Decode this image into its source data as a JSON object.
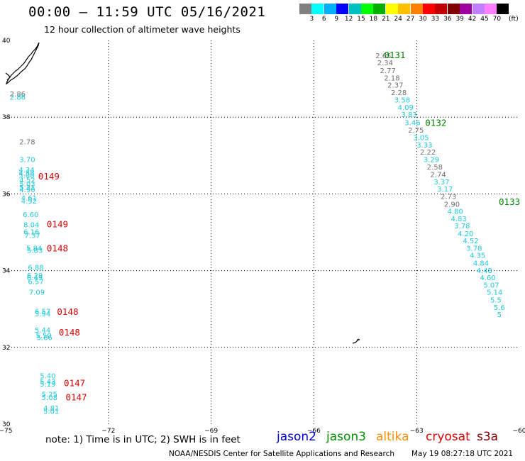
{
  "header": {
    "title": "00:00 – 11:59 UTC 05/16/2021",
    "subtitle": "12 hour collection of altimeter wave heights"
  },
  "legend": {
    "colors": [
      "#808080",
      "#00ffff",
      "#00b0ff",
      "#0000ff",
      "#00c0c0",
      "#00ff00",
      "#00b000",
      "#ffff00",
      "#ffc000",
      "#ff8000",
      "#ff0000",
      "#c00000",
      "#800000",
      "#a000a0",
      "#c080ff",
      "#ff80ff",
      "#000000"
    ],
    "ticks": [
      "3",
      "6",
      "9",
      "12",
      "15",
      "18",
      "21",
      "24",
      "27",
      "30",
      "33",
      "36",
      "39",
      "42",
      "45",
      "70"
    ],
    "unit": "(ft)"
  },
  "axes": {
    "lat_labels": [
      "40",
      "38",
      "36",
      "34",
      "32",
      "30"
    ],
    "lon_labels": [
      "−75",
      "−72",
      "−69",
      "−66",
      "−63",
      "−60"
    ]
  },
  "palette": {
    "cyan": "#1fc8d8",
    "gray": "#707070",
    "red": "#e00000",
    "green": "#008000"
  },
  "track_labels": [
    {
      "text": "0131",
      "color": "green",
      "lon": -63.95,
      "lat": 39.54
    },
    {
      "text": "0132",
      "color": "green",
      "lon": -62.75,
      "lat": 37.77
    },
    {
      "text": "0133",
      "color": "green",
      "lon": -60.6,
      "lat": 35.71
    },
    {
      "text": "0149",
      "color": "red",
      "lon": -74.05,
      "lat": 36.38
    },
    {
      "text": "0149",
      "color": "red",
      "lon": -73.8,
      "lat": 35.13
    },
    {
      "text": "0148",
      "color": "red",
      "lon": -73.8,
      "lat": 34.5
    },
    {
      "text": "0148",
      "color": "red",
      "lon": -73.5,
      "lat": 32.85
    },
    {
      "text": "0148",
      "color": "red",
      "lon": -73.45,
      "lat": 32.31
    },
    {
      "text": "0147",
      "color": "red",
      "lon": -73.3,
      "lat": 30.99
    },
    {
      "text": "0147",
      "color": "red",
      "lon": -73.25,
      "lat": 30.62
    }
  ],
  "observations": [
    {
      "t": "2.65",
      "c": "gray",
      "lon": -64.2,
      "lat": 39.54
    },
    {
      "t": "2.34",
      "c": "gray",
      "lon": -64.15,
      "lat": 39.35
    },
    {
      "t": "2.77",
      "c": "gray",
      "lon": -64.07,
      "lat": 39.15
    },
    {
      "t": "2.18",
      "c": "gray",
      "lon": -63.95,
      "lat": 38.96
    },
    {
      "t": "2.37",
      "c": "gray",
      "lon": -63.85,
      "lat": 38.77
    },
    {
      "t": "2.28",
      "c": "gray",
      "lon": -63.75,
      "lat": 38.58
    },
    {
      "t": "3.58",
      "c": "cyan",
      "lon": -63.65,
      "lat": 38.38
    },
    {
      "t": "4.09",
      "c": "cyan",
      "lon": -63.55,
      "lat": 38.19
    },
    {
      "t": "3.83",
      "c": "cyan",
      "lon": -63.45,
      "lat": 38.0
    },
    {
      "t": "3.46",
      "c": "cyan",
      "lon": -63.35,
      "lat": 37.79
    },
    {
      "t": "2.75",
      "c": "gray",
      "lon": -63.25,
      "lat": 37.6
    },
    {
      "t": "3.05",
      "c": "cyan",
      "lon": -63.1,
      "lat": 37.4
    },
    {
      "t": "3.33",
      "c": "cyan",
      "lon": -63.0,
      "lat": 37.21
    },
    {
      "t": "2.22",
      "c": "gray",
      "lon": -62.9,
      "lat": 37.02
    },
    {
      "t": "3.29",
      "c": "cyan",
      "lon": -62.8,
      "lat": 36.83
    },
    {
      "t": "2.58",
      "c": "gray",
      "lon": -62.7,
      "lat": 36.64
    },
    {
      "t": "2.74",
      "c": "gray",
      "lon": -62.6,
      "lat": 36.44
    },
    {
      "t": "3.37",
      "c": "cyan",
      "lon": -62.5,
      "lat": 36.25
    },
    {
      "t": "3.17",
      "c": "cyan",
      "lon": -62.4,
      "lat": 36.06
    },
    {
      "t": "2.73",
      "c": "gray",
      "lon": -62.3,
      "lat": 35.87
    },
    {
      "t": "2.90",
      "c": "gray",
      "lon": -62.2,
      "lat": 35.67
    },
    {
      "t": "4.80",
      "c": "cyan",
      "lon": -62.1,
      "lat": 35.48
    },
    {
      "t": "4.83",
      "c": "cyan",
      "lon": -62.0,
      "lat": 35.29
    },
    {
      "t": "3.78",
      "c": "cyan",
      "lon": -61.9,
      "lat": 35.1
    },
    {
      "t": "4.20",
      "c": "cyan",
      "lon": -61.8,
      "lat": 34.9
    },
    {
      "t": "4.52",
      "c": "cyan",
      "lon": -61.65,
      "lat": 34.71
    },
    {
      "t": "3.78",
      "c": "cyan",
      "lon": -61.55,
      "lat": 34.52
    },
    {
      "t": "4.35",
      "c": "cyan",
      "lon": -61.45,
      "lat": 34.33
    },
    {
      "t": "4.84",
      "c": "cyan",
      "lon": -61.35,
      "lat": 34.13
    },
    {
      "t": "4.48",
      "c": "cyan",
      "lon": -61.25,
      "lat": 33.94
    },
    {
      "t": "4.60",
      "c": "cyan",
      "lon": -61.15,
      "lat": 33.75
    },
    {
      "t": "5.07",
      "c": "cyan",
      "lon": -61.05,
      "lat": 33.56
    },
    {
      "t": "5.14",
      "c": "cyan",
      "lon": -60.95,
      "lat": 33.37
    },
    {
      "t": "5.5",
      "c": "cyan",
      "lon": -60.85,
      "lat": 33.17
    },
    {
      "t": "5.6",
      "c": "cyan",
      "lon": -60.75,
      "lat": 32.98
    },
    {
      "t": "5",
      "c": "cyan",
      "lon": -60.65,
      "lat": 32.79
    },
    {
      "t": "2.86",
      "c": "gray",
      "lon": -74.88,
      "lat": 38.54
    },
    {
      "t": "2.86",
      "c": "cyan",
      "lon": -74.88,
      "lat": 38.46
    },
    {
      "t": "2.78",
      "c": "gray",
      "lon": -74.6,
      "lat": 37.29
    },
    {
      "t": "3.70",
      "c": "cyan",
      "lon": -74.6,
      "lat": 36.83
    },
    {
      "t": "4.34",
      "c": "cyan",
      "lon": -74.62,
      "lat": 36.56
    },
    {
      "t": "4.58",
      "c": "cyan",
      "lon": -74.62,
      "lat": 36.48
    },
    {
      "t": "5.08",
      "c": "cyan",
      "lon": -74.62,
      "lat": 36.42
    },
    {
      "t": "4.52",
      "c": "cyan",
      "lon": -74.6,
      "lat": 36.29
    },
    {
      "t": "5.03",
      "c": "cyan",
      "lon": -74.6,
      "lat": 36.19
    },
    {
      "t": "5.21",
      "c": "cyan",
      "lon": -74.6,
      "lat": 36.1
    },
    {
      "t": "4.90",
      "c": "cyan",
      "lon": -74.6,
      "lat": 36.04
    },
    {
      "t": "4.61",
      "c": "cyan",
      "lon": -74.55,
      "lat": 35.83
    },
    {
      "t": "4.92",
      "c": "cyan",
      "lon": -74.55,
      "lat": 35.75
    },
    {
      "t": "6.60",
      "c": "cyan",
      "lon": -74.5,
      "lat": 35.4
    },
    {
      "t": "8.04",
      "c": "cyan",
      "lon": -74.48,
      "lat": 35.13
    },
    {
      "t": "6.16",
      "c": "cyan",
      "lon": -74.48,
      "lat": 34.94
    },
    {
      "t": "7.37",
      "c": "cyan",
      "lon": -74.45,
      "lat": 34.85
    },
    {
      "t": "5.84",
      "c": "cyan",
      "lon": -74.4,
      "lat": 34.52
    },
    {
      "t": "5.83",
      "c": "cyan",
      "lon": -74.38,
      "lat": 34.46
    },
    {
      "t": "6.88",
      "c": "cyan",
      "lon": -74.35,
      "lat": 34.02
    },
    {
      "t": "6.29",
      "c": "cyan",
      "lon": -74.38,
      "lat": 33.81
    },
    {
      "t": "6.49",
      "c": "cyan",
      "lon": -74.38,
      "lat": 33.75
    },
    {
      "t": "6.57",
      "c": "cyan",
      "lon": -74.35,
      "lat": 33.65
    },
    {
      "t": "7.09",
      "c": "cyan",
      "lon": -74.32,
      "lat": 33.37
    },
    {
      "t": "6.57",
      "c": "cyan",
      "lon": -74.15,
      "lat": 32.87
    },
    {
      "t": "5.94",
      "c": "cyan",
      "lon": -74.15,
      "lat": 32.81
    },
    {
      "t": "5.44",
      "c": "cyan",
      "lon": -74.15,
      "lat": 32.38
    },
    {
      "t": "5.50",
      "c": "cyan",
      "lon": -74.12,
      "lat": 32.25
    },
    {
      "t": "5.66",
      "c": "cyan",
      "lon": -74.1,
      "lat": 32.19
    },
    {
      "t": "5.40",
      "c": "cyan",
      "lon": -74.0,
      "lat": 31.19
    },
    {
      "t": "5.43",
      "c": "cyan",
      "lon": -74.0,
      "lat": 31.04
    },
    {
      "t": "5.19",
      "c": "cyan",
      "lon": -74.0,
      "lat": 30.98
    },
    {
      "t": "5.25",
      "c": "cyan",
      "lon": -73.95,
      "lat": 30.71
    },
    {
      "t": "5.08",
      "c": "cyan",
      "lon": -73.95,
      "lat": 30.63
    },
    {
      "t": "4.81",
      "c": "cyan",
      "lon": -73.9,
      "lat": 30.35
    },
    {
      "t": "5.01",
      "c": "cyan",
      "lon": -73.9,
      "lat": 30.27
    }
  ],
  "note": "note: 1) Time is in UTC; 2) SWH is in feet",
  "satellites": [
    {
      "name": "jason2",
      "color": "#0000e0"
    },
    {
      "name": "jason3",
      "color": "#009000"
    },
    {
      "name": "altika",
      "color": "#ff9000"
    },
    {
      "name": "cryosat",
      "color": "#e00000"
    },
    {
      "name": "s3a",
      "color": "#800000"
    }
  ],
  "footer": {
    "credit": "NOAA/NESDIS Center for Satellite Applications and Research",
    "timestamp": "May 19 08:27:18 UTC 2021"
  }
}
